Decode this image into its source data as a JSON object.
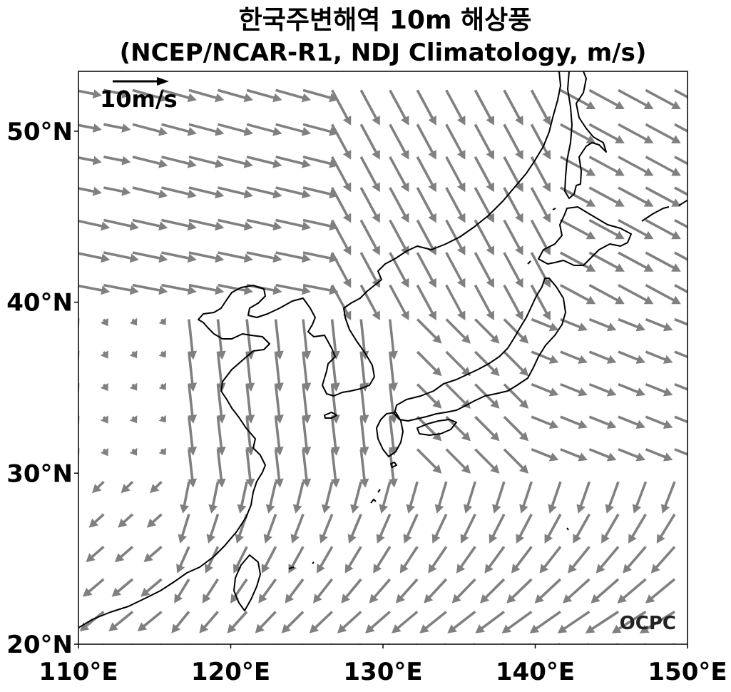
{
  "figure": {
    "title_line1": "한국주변해역 10m 해상풍",
    "title_line2": "(NCEP/NCAR-R1, NDJ Climatology, m/s)",
    "reference_vector_label": "10m/s",
    "logo_text": "OCPC"
  },
  "axes": {
    "lon_range": [
      110,
      150
    ],
    "lat_range": [
      20,
      53.5
    ],
    "x_ticks": [
      {
        "value": 110,
        "label": "110°E"
      },
      {
        "value": 120,
        "label": "120°E"
      },
      {
        "value": 130,
        "label": "130°E"
      },
      {
        "value": 140,
        "label": "140°E"
      },
      {
        "value": 150,
        "label": "150°E"
      }
    ],
    "y_ticks": [
      {
        "value": 20,
        "label": "20°N"
      },
      {
        "value": 30,
        "label": "30°N"
      },
      {
        "value": 40,
        "label": "40°N"
      },
      {
        "value": 50,
        "label": "50°N"
      }
    ]
  },
  "style": {
    "arrow_color": "#808080",
    "coast_color": "#000000"
  },
  "chart_data": {
    "type": "vector-field",
    "title": "한국주변해역 10m 해상풍 (NCEP/NCAR-R1, NDJ Climatology, m/s)",
    "reference_vector_m_per_s": 10,
    "x_grid_lon": [
      110.6,
      112.5,
      114.4,
      116.3,
      118.1,
      120.0,
      121.9,
      123.8,
      125.6,
      127.5,
      129.4,
      131.3,
      133.1,
      135.0,
      136.9,
      138.8,
      140.6,
      142.5,
      144.4,
      146.3,
      148.1,
      150.0
    ],
    "y_grid_lat": [
      20.0,
      21.9,
      23.8,
      25.7,
      27.6,
      29.5,
      31.4,
      33.3,
      35.2,
      37.1,
      39.0,
      41.0,
      42.9,
      44.8,
      46.7,
      48.5,
      50.4,
      52.4
    ]
  }
}
